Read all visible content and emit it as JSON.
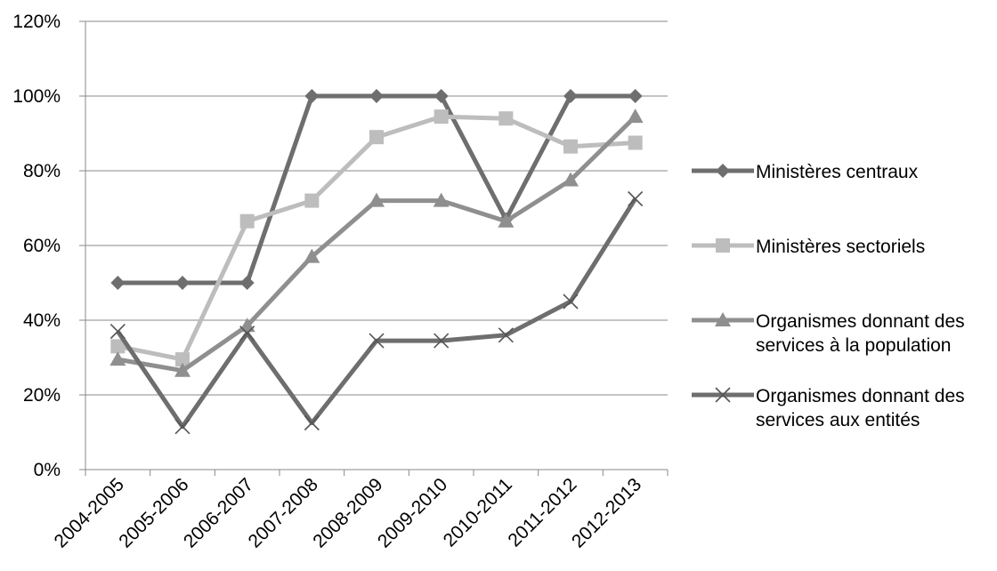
{
  "chart_data": {
    "type": "line",
    "categories": [
      "2004-2005",
      "2005-2006",
      "2006-2007",
      "2007-2008",
      "2008-2009",
      "2009-2010",
      "2010-2011",
      "2011-2012",
      "2012-2013"
    ],
    "yticks": [
      "0%",
      "20%",
      "40%",
      "60%",
      "80%",
      "100%",
      "120%"
    ],
    "ylim": [
      0,
      120
    ],
    "grid": "horizontal",
    "legend_position": "right",
    "series": [
      {
        "name": [
          "Ministères centraux"
        ],
        "marker": "diamond",
        "color": "#6e6e6e",
        "values": [
          50,
          50,
          50,
          100,
          100,
          100,
          67,
          100,
          100
        ]
      },
      {
        "name": [
          "Ministères sectoriels"
        ],
        "marker": "square",
        "color": "#bdbdbd",
        "values": [
          33,
          29.5,
          66.5,
          72,
          89,
          94.5,
          94,
          86.5,
          87.5
        ]
      },
      {
        "name": [
          "Organismes donnant des",
          "services à la population"
        ],
        "marker": "triangle",
        "color": "#8f8f8f",
        "values": [
          29.5,
          26.5,
          38.5,
          57,
          72,
          72,
          66.5,
          77.5,
          94.5
        ]
      },
      {
        "name": [
          "Organismes donnant des",
          "services aux entités"
        ],
        "marker": "x",
        "color": "#6e6e6e",
        "values": [
          37,
          11.5,
          36.5,
          12.5,
          34.5,
          34.5,
          36,
          45,
          72.5
        ]
      }
    ]
  }
}
